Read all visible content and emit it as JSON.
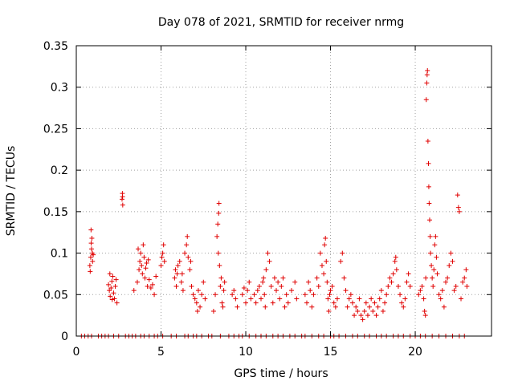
{
  "chart_data": {
    "type": "scatter",
    "title": "Day 078 of 2021, SRMTID for receiver nrmg",
    "xlabel": "GPS time / hours",
    "ylabel": "SRMTID / TECUs",
    "xlim": [
      0,
      24.5
    ],
    "ylim": [
      0,
      0.35
    ],
    "xticks": [
      0,
      5,
      10,
      15,
      20
    ],
    "xtick_labels": [
      "0",
      "5",
      "10",
      "15",
      "20"
    ],
    "yticks": [
      0,
      0.05,
      0.1,
      0.15,
      0.2,
      0.25,
      0.3,
      0.35
    ],
    "ytick_labels": [
      "0",
      "0.05",
      "0.1",
      "0.15",
      "0.2",
      "0.25",
      "0.3",
      "0.35"
    ],
    "grid": true,
    "marker": "plus",
    "color": "#e00000",
    "series": [
      {
        "name": "SRMTID",
        "points": [
          [
            0.8,
            0.085
          ],
          [
            0.85,
            0.095
          ],
          [
            0.9,
            0.105
          ],
          [
            0.95,
            0.1
          ],
          [
            0.82,
            0.078
          ],
          [
            0.88,
            0.112
          ],
          [
            0.92,
            0.118
          ],
          [
            0.87,
            0.128
          ],
          [
            0.96,
            0.09
          ],
          [
            1.0,
            0.098
          ],
          [
            1.9,
            0.062
          ],
          [
            1.95,
            0.055
          ],
          [
            2.0,
            0.048
          ],
          [
            2.05,
            0.058
          ],
          [
            2.1,
            0.066
          ],
          [
            2.15,
            0.072
          ],
          [
            2.2,
            0.052
          ],
          [
            2.25,
            0.045
          ],
          [
            2.3,
            0.06
          ],
          [
            2.35,
            0.068
          ],
          [
            2.4,
            0.04
          ],
          [
            1.98,
            0.075
          ],
          [
            2.12,
            0.044
          ],
          [
            2.7,
            0.165
          ],
          [
            2.72,
            0.172
          ],
          [
            2.74,
            0.158
          ],
          [
            2.73,
            0.168
          ],
          [
            3.4,
            0.055
          ],
          [
            3.6,
            0.065
          ],
          [
            3.7,
            0.08
          ],
          [
            3.75,
            0.09
          ],
          [
            3.8,
            0.1
          ],
          [
            3.85,
            0.085
          ],
          [
            3.9,
            0.075
          ],
          [
            3.95,
            0.11
          ],
          [
            4.0,
            0.095
          ],
          [
            4.05,
            0.07
          ],
          [
            4.1,
            0.082
          ],
          [
            4.15,
            0.088
          ],
          [
            4.2,
            0.06
          ],
          [
            4.3,
            0.068
          ],
          [
            4.4,
            0.058
          ],
          [
            4.5,
            0.062
          ],
          [
            4.6,
            0.05
          ],
          [
            4.7,
            0.072
          ],
          [
            3.65,
            0.105
          ],
          [
            4.25,
            0.092
          ],
          [
            5.0,
            0.085
          ],
          [
            5.05,
            0.095
          ],
          [
            5.1,
            0.1
          ],
          [
            5.15,
            0.11
          ],
          [
            5.2,
            0.09
          ],
          [
            5.8,
            0.07
          ],
          [
            5.85,
            0.08
          ],
          [
            5.9,
            0.06
          ],
          [
            5.95,
            0.075
          ],
          [
            6.0,
            0.085
          ],
          [
            6.1,
            0.09
          ],
          [
            6.2,
            0.065
          ],
          [
            6.3,
            0.055
          ],
          [
            6.4,
            0.1
          ],
          [
            6.5,
            0.11
          ],
          [
            6.55,
            0.12
          ],
          [
            6.6,
            0.095
          ],
          [
            6.7,
            0.08
          ],
          [
            6.8,
            0.06
          ],
          [
            6.9,
            0.05
          ],
          [
            7.0,
            0.045
          ],
          [
            7.1,
            0.04
          ],
          [
            7.2,
            0.055
          ],
          [
            7.3,
            0.035
          ],
          [
            7.4,
            0.05
          ],
          [
            7.5,
            0.065
          ],
          [
            7.6,
            0.045
          ],
          [
            6.25,
            0.075
          ],
          [
            6.75,
            0.09
          ],
          [
            7.15,
            0.03
          ],
          [
            8.1,
            0.03
          ],
          [
            8.2,
            0.05
          ],
          [
            8.3,
            0.12
          ],
          [
            8.35,
            0.135
          ],
          [
            8.4,
            0.148
          ],
          [
            8.42,
            0.16
          ],
          [
            8.45,
            0.085
          ],
          [
            8.5,
            0.06
          ],
          [
            8.55,
            0.07
          ],
          [
            8.6,
            0.04
          ],
          [
            8.65,
            0.035
          ],
          [
            8.7,
            0.055
          ],
          [
            8.75,
            0.065
          ],
          [
            8.38,
            0.1
          ],
          [
            9.2,
            0.05
          ],
          [
            9.3,
            0.055
          ],
          [
            9.4,
            0.045
          ],
          [
            9.5,
            0.035
          ],
          [
            9.8,
            0.05
          ],
          [
            9.9,
            0.058
          ],
          [
            10.0,
            0.04
          ],
          [
            10.1,
            0.055
          ],
          [
            10.2,
            0.065
          ],
          [
            10.3,
            0.045
          ],
          [
            10.5,
            0.05
          ],
          [
            10.6,
            0.04
          ],
          [
            10.7,
            0.055
          ],
          [
            10.8,
            0.06
          ],
          [
            10.9,
            0.045
          ],
          [
            11.0,
            0.065
          ],
          [
            11.05,
            0.07
          ],
          [
            11.1,
            0.05
          ],
          [
            11.15,
            0.035
          ],
          [
            11.2,
            0.08
          ],
          [
            11.3,
            0.1
          ],
          [
            11.4,
            0.09
          ],
          [
            11.5,
            0.06
          ],
          [
            11.6,
            0.04
          ],
          [
            11.7,
            0.07
          ],
          [
            11.8,
            0.055
          ],
          [
            11.9,
            0.065
          ],
          [
            12.0,
            0.045
          ],
          [
            12.1,
            0.06
          ],
          [
            12.2,
            0.07
          ],
          [
            12.3,
            0.035
          ],
          [
            12.4,
            0.05
          ],
          [
            12.5,
            0.04
          ],
          [
            12.7,
            0.055
          ],
          [
            12.9,
            0.065
          ],
          [
            13.0,
            0.045
          ],
          [
            13.5,
            0.05
          ],
          [
            13.6,
            0.04
          ],
          [
            13.7,
            0.065
          ],
          [
            13.8,
            0.055
          ],
          [
            13.9,
            0.035
          ],
          [
            14.0,
            0.05
          ],
          [
            14.2,
            0.07
          ],
          [
            14.3,
            0.06
          ],
          [
            14.4,
            0.1
          ],
          [
            14.5,
            0.085
          ],
          [
            14.6,
            0.075
          ],
          [
            14.65,
            0.11
          ],
          [
            14.7,
            0.118
          ],
          [
            14.75,
            0.09
          ],
          [
            14.8,
            0.065
          ],
          [
            14.85,
            0.045
          ],
          [
            14.9,
            0.03
          ],
          [
            14.95,
            0.05
          ],
          [
            15.0,
            0.055
          ],
          [
            15.1,
            0.06
          ],
          [
            15.2,
            0.04
          ],
          [
            15.3,
            0.035
          ],
          [
            15.4,
            0.045
          ],
          [
            15.6,
            0.09
          ],
          [
            15.7,
            0.1
          ],
          [
            15.8,
            0.07
          ],
          [
            15.9,
            0.055
          ],
          [
            16.0,
            0.035
          ],
          [
            16.1,
            0.045
          ],
          [
            16.2,
            0.05
          ],
          [
            16.3,
            0.04
          ],
          [
            16.4,
            0.025
          ],
          [
            16.5,
            0.035
          ],
          [
            16.6,
            0.03
          ],
          [
            16.7,
            0.045
          ],
          [
            16.8,
            0.025
          ],
          [
            16.9,
            0.02
          ],
          [
            17.0,
            0.03
          ],
          [
            17.1,
            0.04
          ],
          [
            17.2,
            0.025
          ],
          [
            17.3,
            0.035
          ],
          [
            17.4,
            0.045
          ],
          [
            17.5,
            0.03
          ],
          [
            17.6,
            0.04
          ],
          [
            17.7,
            0.025
          ],
          [
            17.8,
            0.035
          ],
          [
            17.9,
            0.045
          ],
          [
            18.0,
            0.055
          ],
          [
            18.1,
            0.03
          ],
          [
            18.2,
            0.04
          ],
          [
            18.3,
            0.05
          ],
          [
            18.4,
            0.06
          ],
          [
            18.5,
            0.07
          ],
          [
            18.6,
            0.065
          ],
          [
            18.7,
            0.075
          ],
          [
            18.8,
            0.09
          ],
          [
            18.85,
            0.095
          ],
          [
            18.9,
            0.08
          ],
          [
            19.0,
            0.06
          ],
          [
            19.1,
            0.05
          ],
          [
            19.2,
            0.04
          ],
          [
            19.3,
            0.035
          ],
          [
            19.4,
            0.045
          ],
          [
            19.5,
            0.065
          ],
          [
            19.6,
            0.075
          ],
          [
            19.7,
            0.06
          ],
          [
            20.2,
            0.05
          ],
          [
            20.3,
            0.055
          ],
          [
            20.4,
            0.06
          ],
          [
            20.5,
            0.045
          ],
          [
            20.55,
            0.03
          ],
          [
            20.6,
            0.025
          ],
          [
            20.62,
            0.07
          ],
          [
            20.65,
            0.285
          ],
          [
            20.68,
            0.305
          ],
          [
            20.7,
            0.315
          ],
          [
            20.72,
            0.32
          ],
          [
            20.75,
            0.235
          ],
          [
            20.78,
            0.208
          ],
          [
            20.8,
            0.18
          ],
          [
            20.82,
            0.16
          ],
          [
            20.85,
            0.14
          ],
          [
            20.88,
            0.12
          ],
          [
            20.9,
            0.1
          ],
          [
            20.95,
            0.085
          ],
          [
            21.0,
            0.07
          ],
          [
            21.05,
            0.06
          ],
          [
            21.1,
            0.08
          ],
          [
            21.15,
            0.11
          ],
          [
            21.2,
            0.12
          ],
          [
            21.25,
            0.095
          ],
          [
            21.3,
            0.075
          ],
          [
            21.4,
            0.05
          ],
          [
            21.5,
            0.045
          ],
          [
            21.6,
            0.055
          ],
          [
            21.7,
            0.035
          ],
          [
            21.8,
            0.065
          ],
          [
            21.9,
            0.07
          ],
          [
            22.0,
            0.085
          ],
          [
            22.1,
            0.1
          ],
          [
            22.2,
            0.09
          ],
          [
            22.3,
            0.055
          ],
          [
            22.4,
            0.06
          ],
          [
            22.5,
            0.17
          ],
          [
            22.55,
            0.155
          ],
          [
            22.6,
            0.15
          ],
          [
            22.7,
            0.045
          ],
          [
            22.8,
            0.065
          ],
          [
            22.9,
            0.07
          ],
          [
            23.0,
            0.08
          ],
          [
            23.05,
            0.06
          ],
          [
            0.3,
            0
          ],
          [
            0.5,
            0
          ],
          [
            0.7,
            0
          ],
          [
            0.9,
            0
          ],
          [
            1.3,
            0
          ],
          [
            1.5,
            0
          ],
          [
            1.7,
            0
          ],
          [
            1.9,
            0
          ],
          [
            2.2,
            0
          ],
          [
            2.5,
            0
          ],
          [
            2.9,
            0
          ],
          [
            3.1,
            0
          ],
          [
            3.3,
            0
          ],
          [
            3.5,
            0
          ],
          [
            3.8,
            0
          ],
          [
            4.0,
            0
          ],
          [
            4.3,
            0
          ],
          [
            4.6,
            0
          ],
          [
            4.8,
            0
          ],
          [
            5.1,
            0
          ],
          [
            5.6,
            0
          ],
          [
            5.9,
            0
          ],
          [
            6.4,
            0
          ],
          [
            6.6,
            0
          ],
          [
            6.9,
            0
          ],
          [
            7.1,
            0
          ],
          [
            7.4,
            0
          ],
          [
            7.8,
            0
          ],
          [
            8.0,
            0
          ],
          [
            8.5,
            0
          ],
          [
            9.0,
            0
          ],
          [
            9.3,
            0
          ],
          [
            9.6,
            0
          ],
          [
            9.8,
            0
          ],
          [
            10.2,
            0
          ],
          [
            10.6,
            0
          ],
          [
            10.9,
            0
          ],
          [
            11.2,
            0
          ],
          [
            11.6,
            0
          ],
          [
            11.9,
            0
          ],
          [
            12.2,
            0
          ],
          [
            12.6,
            0
          ],
          [
            12.9,
            0
          ],
          [
            13.3,
            0
          ],
          [
            13.5,
            0
          ],
          [
            13.9,
            0
          ],
          [
            14.3,
            0
          ],
          [
            14.6,
            0
          ],
          [
            15.0,
            0
          ],
          [
            15.2,
            0
          ],
          [
            15.5,
            0
          ],
          [
            15.9,
            0
          ],
          [
            16.3,
            0
          ],
          [
            16.6,
            0
          ],
          [
            17.0,
            0
          ],
          [
            17.3,
            0
          ],
          [
            17.7,
            0
          ],
          [
            18.0,
            0
          ],
          [
            18.3,
            0
          ],
          [
            18.7,
            0
          ],
          [
            19.0,
            0
          ],
          [
            19.3,
            0
          ],
          [
            19.7,
            0
          ],
          [
            20.0,
            0
          ],
          [
            20.3,
            0
          ],
          [
            20.6,
            0
          ],
          [
            21.0,
            0
          ],
          [
            21.4,
            0
          ],
          [
            21.8,
            0
          ],
          [
            22.2,
            0
          ],
          [
            22.6,
            0
          ],
          [
            22.9,
            0
          ]
        ]
      }
    ]
  }
}
